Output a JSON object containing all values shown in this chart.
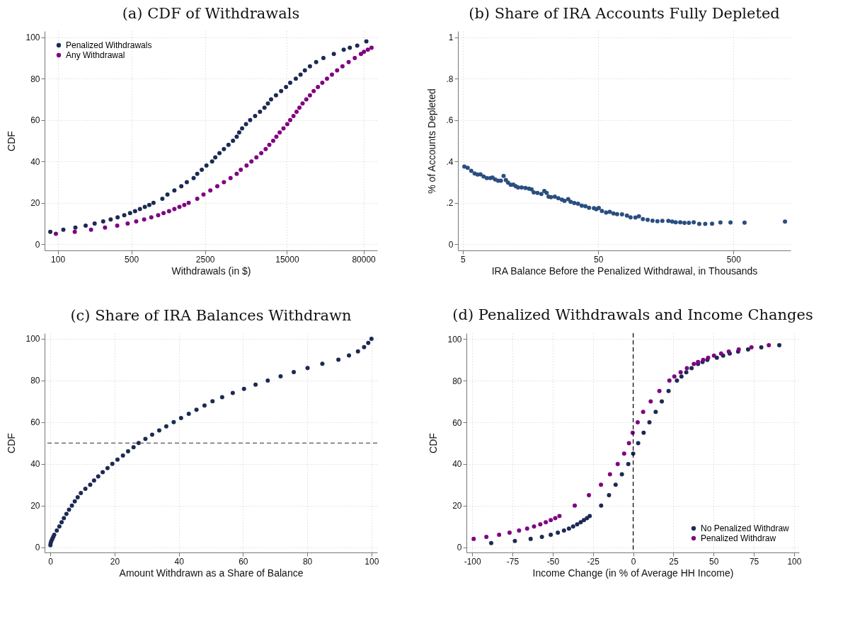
{
  "chart_data": [
    {
      "type": "scatter",
      "title": "(a) CDF of Withdrawals",
      "xlabel": "Withdrawals (in $)",
      "ylabel": "CDF",
      "log": "x",
      "xlim": [
        75,
        108000
      ],
      "ylim": [
        -3,
        103
      ],
      "xticks": [
        100,
        500,
        2500,
        15000,
        80000
      ],
      "yticks": [
        0,
        20,
        40,
        60,
        80,
        100
      ],
      "grid": true,
      "legend": "top left",
      "marker": "circle",
      "series": [
        {
          "name": "Penalized Withdrawals",
          "color": "#1c2a52",
          "x": [
            85,
            113,
            147,
            184,
            224,
            270,
            318,
            370,
            428,
            486,
            542,
            603,
            671,
            740,
            811,
            984,
            1100,
            1280,
            1490,
            1680,
            1950,
            2110,
            2330,
            2580,
            2920,
            3130,
            3430,
            3780,
            4180,
            4610,
            5000,
            5280,
            5630,
            6130,
            6710,
            7480,
            8320,
            9180,
            9890,
            10600,
            11800,
            13200,
            14700,
            16100,
            18200,
            20200,
            22200,
            24800,
            28400,
            33300,
            41800,
            51900,
            59300,
            69700,
            85100
          ],
          "values": [
            6,
            7,
            8,
            9,
            10,
            11,
            12,
            13,
            14,
            15,
            16,
            17,
            18,
            19,
            20,
            22,
            24,
            26,
            28,
            30,
            32,
            34,
            36,
            38,
            40,
            42,
            44,
            46,
            48,
            50,
            52,
            54,
            56,
            58,
            60,
            62,
            64,
            66,
            68,
            70,
            72,
            74,
            76,
            78,
            80,
            82,
            84,
            86,
            88,
            90,
            92,
            94,
            95,
            96,
            98
          ]
        },
        {
          "name": "Any Withdrawal",
          "color": "#800080",
          "x": [
            96,
            145,
            207,
            281,
            367,
            461,
            556,
            661,
            773,
            898,
            1010,
            1140,
            1280,
            1430,
            1590,
            1750,
            2110,
            2420,
            2810,
            3270,
            3780,
            4370,
            5000,
            5470,
            6200,
            6900,
            7690,
            8550,
            9420,
            10200,
            11100,
            11900,
            12800,
            13900,
            15100,
            16100,
            17300,
            18500,
            19700,
            21100,
            22900,
            24800,
            26900,
            29500,
            32500,
            36000,
            40100,
            44900,
            50500,
            57800,
            66100,
            75600,
            80700,
            87900,
            95300
          ],
          "values": [
            5,
            6,
            7,
            8,
            9,
            10,
            11,
            12,
            13,
            14,
            15,
            16,
            17,
            18,
            19,
            20,
            22,
            24,
            26,
            28,
            30,
            32,
            34,
            36,
            38,
            40,
            42,
            44,
            46,
            48,
            50,
            52,
            54,
            56,
            58,
            60,
            62,
            64,
            66,
            68,
            70,
            72,
            74,
            76,
            78,
            80,
            82,
            84,
            86,
            88,
            90,
            92,
            93,
            94,
            95
          ]
        }
      ]
    },
    {
      "type": "scatter",
      "title": "(b) Share of IRA Accounts Fully Depleted",
      "xlabel": "IRA Balance Before the Penalized Withdrawal, in Thousands",
      "ylabel": "% of Accounts Depleted",
      "log": "x",
      "xlim": [
        4.6,
        1320
      ],
      "ylim": [
        -0.03,
        1.03
      ],
      "xticks": [
        5,
        50,
        500
      ],
      "yticks": [
        0,
        {
          "value": 0.2,
          "label": ".2"
        },
        {
          "value": 0.4,
          "label": ".4"
        },
        {
          "value": 0.6,
          "label": ".6"
        },
        {
          "value": 0.8,
          "label": ".8"
        },
        1
      ],
      "grid": true,
      "marker": "circle",
      "series": [
        {
          "color": "#2a4e80",
          "x": [
            5.13,
            5.43,
            5.77,
            6.11,
            6.42,
            6.75,
            7.12,
            7.52,
            7.98,
            8.28,
            8.67,
            9.12,
            9.55,
            10,
            10.4,
            10.8,
            11.3,
            11.8,
            12.3,
            12.8,
            13.6,
            14.5,
            15.4,
            16.1,
            16.7,
            17.8,
            19,
            20,
            20.8,
            21.5,
            22.4,
            23.9,
            25.4,
            27,
            28.2,
            30,
            31.3,
            33.3,
            35.5,
            37.8,
            40.2,
            42.8,
            46.5,
            48.4,
            50.5,
            53.3,
            57.2,
            60.9,
            64.8,
            69,
            75,
            81.5,
            86.7,
            94.2,
            100,
            107,
            116,
            126,
            137,
            149,
            165,
            176,
            187,
            202,
            217,
            234,
            254,
            279,
            309,
            347,
            400,
            475,
            603,
            1200
          ],
          "values": [
            0.375,
            0.369,
            0.355,
            0.342,
            0.337,
            0.338,
            0.327,
            0.32,
            0.32,
            0.322,
            0.313,
            0.307,
            0.307,
            0.33,
            0.31,
            0.297,
            0.287,
            0.288,
            0.28,
            0.274,
            0.274,
            0.272,
            0.268,
            0.265,
            0.25,
            0.248,
            0.243,
            0.257,
            0.248,
            0.23,
            0.227,
            0.23,
            0.222,
            0.215,
            0.209,
            0.218,
            0.205,
            0.199,
            0.196,
            0.186,
            0.184,
            0.176,
            0.174,
            0.169,
            0.175,
            0.161,
            0.153,
            0.156,
            0.149,
            0.145,
            0.144,
            0.138,
            0.13,
            0.129,
            0.135,
            0.121,
            0.118,
            0.114,
            0.111,
            0.113,
            0.113,
            0.109,
            0.106,
            0.106,
            0.103,
            0.103,
            0.106,
            0.098,
            0.098,
            0.099,
            0.105,
            0.105,
            0.104,
            0.109
          ]
        }
      ]
    },
    {
      "type": "scatter",
      "title": "(c) Share of IRA Balances Withdrawn",
      "xlabel": "Amount Withdrawn as a Share of Balance",
      "ylabel": "CDF",
      "xlim": [
        -1.8,
        101.8
      ],
      "ylim": [
        -2.5,
        102.7
      ],
      "xticks": [
        0,
        20,
        40,
        60,
        80,
        100
      ],
      "yticks": [
        0,
        20,
        40,
        60,
        80,
        100
      ],
      "grid": true,
      "marker": "circle",
      "ref_lines": [
        {
          "axis": "y",
          "value": 50,
          "color": "#555555",
          "line_style": "dashed"
        }
      ],
      "series": [
        {
          "color": "#1c2a52",
          "x": [
            0,
            0.1,
            0.3,
            0.6,
            0.9,
            1.2,
            2,
            2.8,
            3.5,
            4.2,
            5,
            5.8,
            6.7,
            7.6,
            8.5,
            9.5,
            10.9,
            12.4,
            13.6,
            14.9,
            16.3,
            17.8,
            19.3,
            20.9,
            22.6,
            24.2,
            25.9,
            27.5,
            29.6,
            31.7,
            33.9,
            36.1,
            38.4,
            40.7,
            43.1,
            45.5,
            48,
            50.5,
            53.5,
            56.8,
            60.3,
            63.9,
            67.7,
            71.7,
            75.8,
            80.1,
            84.7,
            89.7,
            93,
            95.8,
            97.7,
            99,
            100
          ],
          "values": [
            1,
            2,
            3,
            4,
            5,
            6,
            8,
            10,
            12,
            14,
            16,
            18,
            20,
            22,
            24,
            26,
            28,
            30,
            32,
            34,
            36,
            38,
            40,
            42,
            44,
            46,
            48,
            50,
            52,
            54,
            56,
            58,
            60,
            62,
            64,
            66,
            68,
            70,
            72,
            74,
            76,
            78,
            80,
            82,
            84,
            86,
            88,
            90,
            92,
            94,
            96,
            98,
            100
          ]
        }
      ]
    },
    {
      "type": "scatter",
      "title": "(d) Penalized Withdrawals and Income Changes",
      "xlabel": "Income Change (in % of Average HH Income)",
      "ylabel": "CDF",
      "xlim": [
        -103.6,
        103.1
      ],
      "ylim": [
        -2.5,
        102.8
      ],
      "xticks": [
        -100,
        -75,
        -50,
        -25,
        0,
        25,
        50,
        75,
        100
      ],
      "yticks": [
        0,
        20,
        40,
        60,
        80,
        100
      ],
      "grid": true,
      "legend": "bottom right",
      "marker": "circle",
      "ref_lines": [
        {
          "axis": "x",
          "value": 0,
          "color": "#000000",
          "line_style": "dashed"
        }
      ],
      "series": [
        {
          "name": "No Penalized Withdraw",
          "color": "#1c2a52",
          "x": [
            -88.2,
            -73.5,
            -63.7,
            -56.7,
            -51.2,
            -46.8,
            -43,
            -39.9,
            -37.3,
            -34.8,
            -32.6,
            -30.6,
            -28.7,
            -27,
            -19.9,
            -15,
            -10.9,
            -7,
            -3,
            0,
            3.1,
            6.5,
            10.1,
            14,
            17.8,
            22,
            27.2,
            30,
            33,
            36.3,
            40.3,
            43.1,
            46.1,
            52,
            55.9,
            60,
            65.2,
            71.4,
            79.6,
            90.8
          ],
          "values": [
            2,
            3,
            4,
            5,
            6,
            7,
            8,
            9,
            10,
            11,
            12,
            13,
            14,
            15,
            20,
            25,
            30,
            35,
            40,
            45,
            50,
            55,
            60,
            65,
            70,
            75,
            80,
            82,
            84,
            86,
            88,
            89,
            90,
            91,
            92,
            93,
            94,
            95,
            96,
            97
          ]
        },
        {
          "name": "Penalized Withdraw",
          "color": "#800080",
          "x": [
            -99.1,
            -91.2,
            -83.3,
            -76.8,
            -70.9,
            -65.9,
            -61.6,
            -57.7,
            -54.3,
            -51.2,
            -48.4,
            -45.8,
            -36.3,
            -27.5,
            -20,
            -14.4,
            -9.6,
            -5.6,
            -2.6,
            -0.3,
            2.8,
            6.2,
            10.9,
            16.3,
            22.5,
            25.6,
            29.5,
            33.4,
            37.7,
            40.3,
            43.5,
            46.6,
            50.2,
            54.6,
            59.4,
            65.6,
            73.5,
            84.3
          ],
          "values": [
            4,
            5,
            6,
            7,
            8,
            9,
            10,
            11,
            12,
            13,
            14,
            15,
            20,
            25,
            30,
            35,
            40,
            45,
            50,
            55,
            60,
            65,
            70,
            75,
            80,
            82,
            84,
            86,
            88,
            89,
            90,
            91,
            92,
            93,
            94,
            95,
            96,
            97
          ]
        }
      ]
    }
  ]
}
